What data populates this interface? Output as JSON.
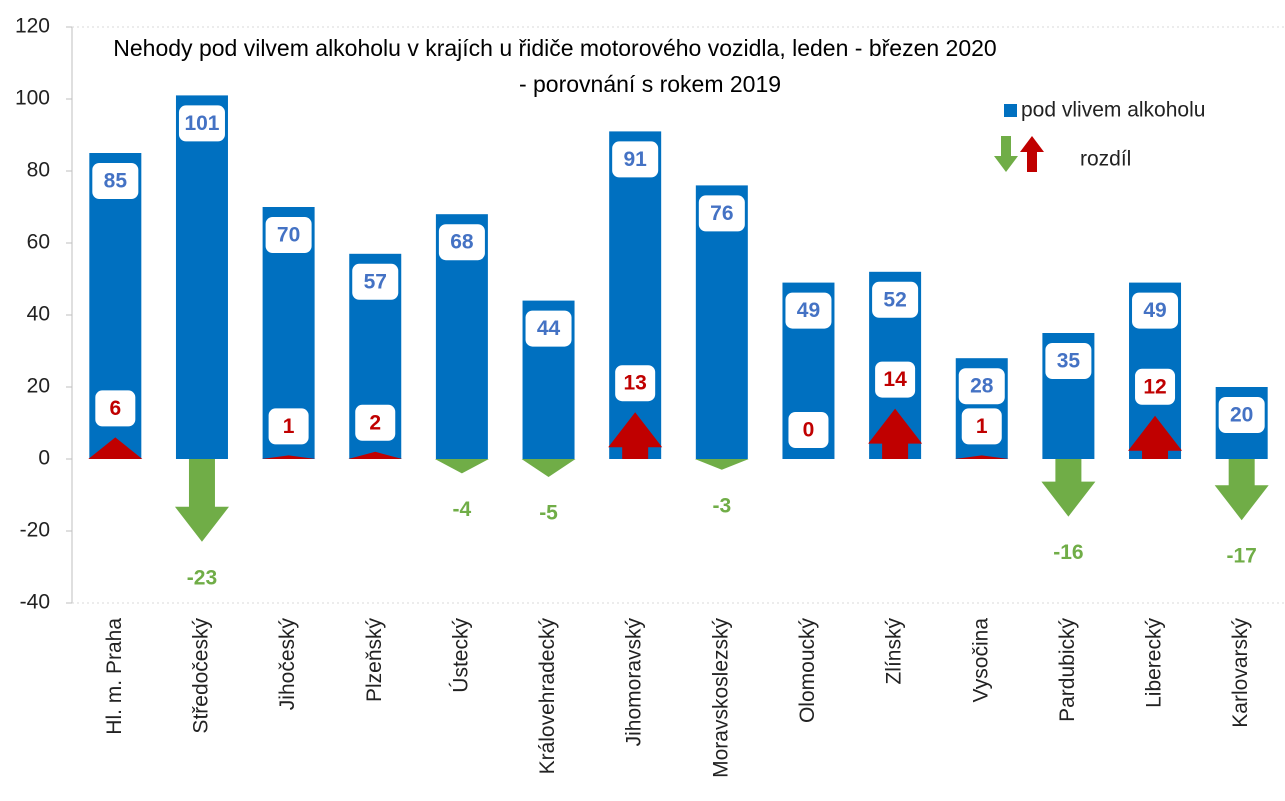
{
  "chart_data": {
    "type": "bar",
    "title": [
      "Nehody pod vilvem alkoholu v krajích u řidiče motorového vozidla, leden - březen 2020",
      "- porovnání s rokem 2019"
    ],
    "categories": [
      "Hl. m. Praha",
      "Středočeský",
      "Jihočeský",
      "Plzeňský",
      "Ústecký",
      "Královehradecký",
      "Jihomoravský",
      "Moravskoslezský",
      "Olomoucký",
      "Zlínský",
      "Vysočina",
      "Pardubický",
      "Liberecký",
      "Karlovarský"
    ],
    "series": [
      {
        "name": "pod vlivem alkoholu",
        "color": "#0070c0",
        "label_color": "#4472c4",
        "values": [
          85,
          101,
          70,
          57,
          68,
          44,
          91,
          76,
          49,
          52,
          28,
          35,
          49,
          20
        ]
      },
      {
        "name": "rozdíl",
        "color_up": "#c00000",
        "color_down": "#70ad47",
        "values": [
          6,
          -23,
          1,
          2,
          -4,
          -5,
          13,
          -3,
          0,
          14,
          1,
          -16,
          12,
          -17
        ]
      }
    ],
    "ylim": [
      -40,
      120
    ],
    "yticks": [
      -40,
      -20,
      0,
      20,
      40,
      60,
      80,
      100,
      120
    ]
  }
}
